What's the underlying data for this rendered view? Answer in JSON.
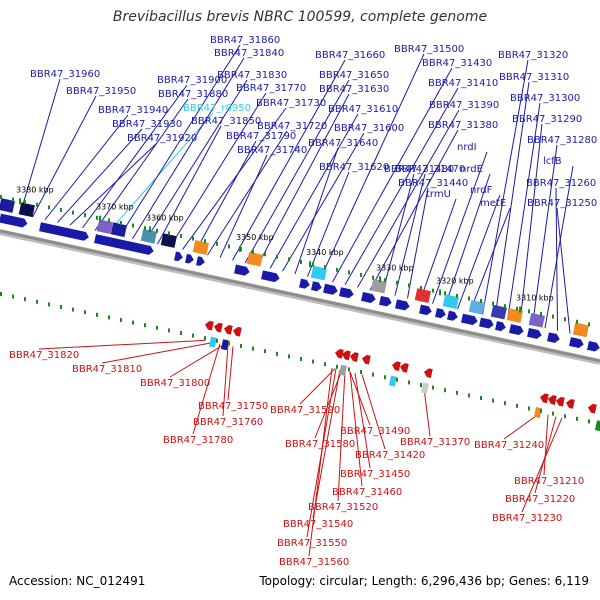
{
  "title": "Brevibacillus brevis NBRC 100599, complete genome",
  "footer": {
    "accession": "Accession: NC_012491",
    "summary": "Topology: circular; Length: 6,296,436 bp; Genes: 6,119"
  },
  "colors": {
    "forward_gene": "#1a1aa8",
    "reverse_gene": "#cc1111",
    "highlight_gene": "#33c9f0",
    "backbone": "#8c8c8c",
    "tick": "#1a8a1a"
  },
  "ticks": [
    {
      "label": "3380 kbp",
      "kbp": 3380
    },
    {
      "label": "3370 kbp",
      "kbp": 3370
    },
    {
      "label": "3360 kbp",
      "kbp": 3360
    },
    {
      "label": "3350 kbp",
      "kbp": 3350
    },
    {
      "label": "3340 kbp",
      "kbp": 3340
    },
    {
      "label": "3330 kbp",
      "kbp": 3330
    },
    {
      "label": "3320 kbp",
      "kbp": 3320
    },
    {
      "label": "3310 kbp",
      "kbp": 3310
    }
  ],
  "top_labels": [
    "BBR47_31960",
    "BBR47_31950",
    "BBR47_31940",
    "BBR47_31930",
    "BBR47_31920",
    "BBR47_31900",
    "BBR47_31880",
    "BBR47_r0950",
    "BBR47_31860",
    "BBR47_31840",
    "BBR47_31830",
    "BBR47_31850",
    "BBR47_31770",
    "BBR47_31730",
    "BBR47_31790",
    "BBR47_31720",
    "BBR47_31740",
    "BBR47_31660",
    "BBR47_31650",
    "BBR47_31630",
    "BBR47_31610",
    "BBR47_31600",
    "BBR47_31640",
    "BBR47_31620",
    "BBR47_31500",
    "BBR47_31430",
    "BBR47_31410",
    "BBR47_31390",
    "BBR47_31380",
    "BBR47_31480",
    "BBR47_31470",
    "BBR47_31440",
    "trmU",
    "nrdI",
    "nrdE",
    "nrdF",
    "metE",
    "BBR47_31320",
    "BBR47_31310",
    "BBR47_31300",
    "BBR47_31290",
    "BBR47_31280",
    "lcfB",
    "BBR47_31260",
    "BBR47_31250"
  ],
  "bottom_labels": [
    "BBR47_31820",
    "BBR47_31810",
    "BBR47_31800",
    "BBR47_31750",
    "BBR47_31760",
    "BBR47_31780",
    "BBR47_31590",
    "BBR47_31580",
    "BBR47_31490",
    "BBR47_31420",
    "BBR47_31450",
    "BBR47_31460",
    "BBR47_31520",
    "BBR47_31540",
    "BBR47_31550",
    "BBR47_31560",
    "BBR47_31370",
    "BBR47_31240",
    "BBR47_31210",
    "BBR47_31220",
    "BBR47_31230"
  ]
}
